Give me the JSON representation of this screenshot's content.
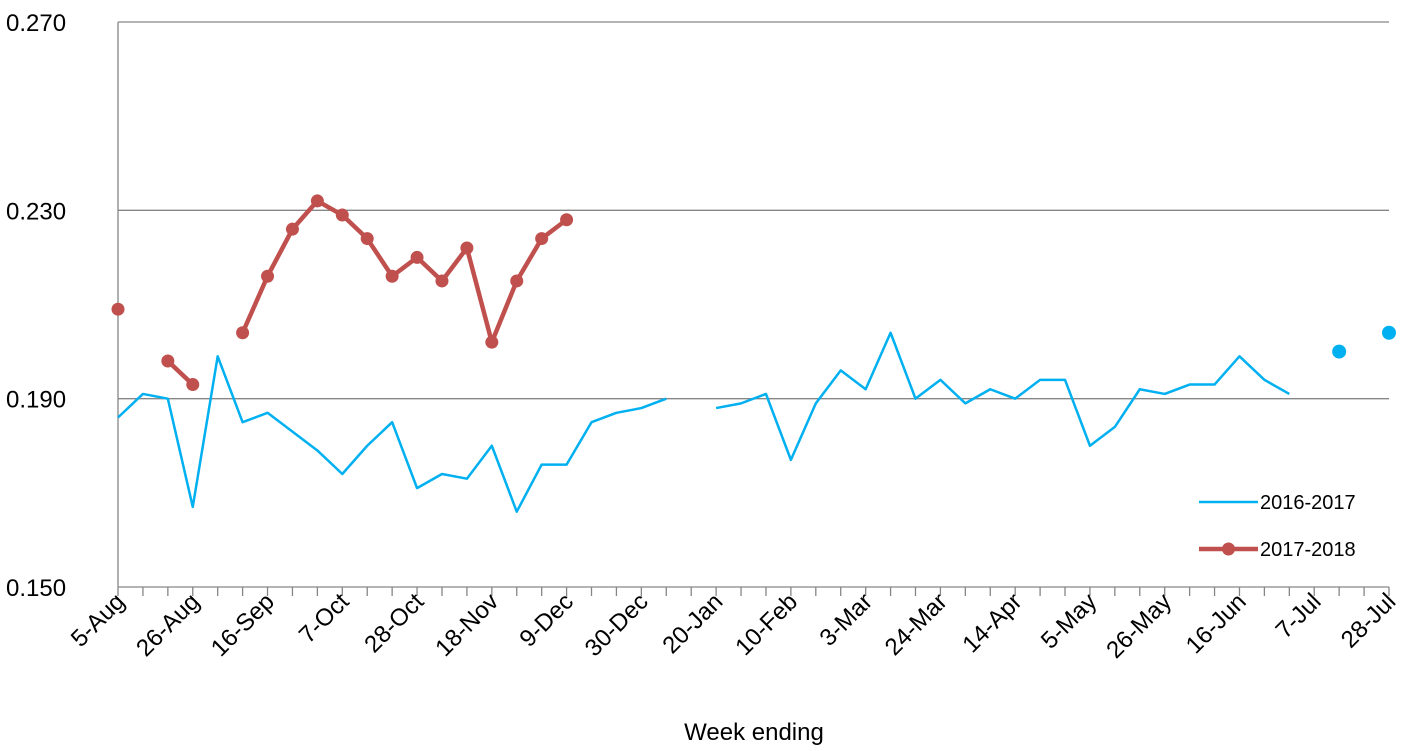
{
  "chart_data": {
    "type": "line",
    "title": "",
    "xlabel": "Week ending",
    "ylabel": "",
    "ylim": [
      0.15,
      0.27
    ],
    "yticks": [
      "0.150",
      "0.190",
      "0.230",
      "0.270"
    ],
    "grid": true,
    "legend_position": "bottom-right",
    "x_tick_labels": [
      "5-Aug",
      "26-Aug",
      "16-Sep",
      "7-Oct",
      "28-Oct",
      "18-Nov",
      "9-Dec",
      "30-Dec",
      "20-Jan",
      "10-Feb",
      "3-Mar",
      "24-Mar",
      "14-Apr",
      "5-May",
      "26-May",
      "16-Jun",
      "7-Jul",
      "28-Jul"
    ],
    "x_week_count": 52,
    "series": [
      {
        "name": "2016-2017",
        "color": "#00b0f0",
        "markers": false,
        "values": [
          0.186,
          0.191,
          0.19,
          0.167,
          0.199,
          0.185,
          0.187,
          0.183,
          0.179,
          0.174,
          0.18,
          0.185,
          0.171,
          0.174,
          0.173,
          0.18,
          0.166,
          0.176,
          0.176,
          0.185,
          0.187,
          0.188,
          0.19,
          null,
          0.188,
          0.189,
          0.191,
          0.177,
          0.189,
          0.196,
          0.192,
          0.204,
          0.19,
          0.194,
          0.189,
          0.192,
          0.19,
          0.194,
          0.194,
          0.18,
          0.184,
          0.192,
          0.191,
          0.193,
          0.193,
          0.199,
          0.194,
          0.191,
          null,
          0.2,
          null,
          0.204
        ]
      },
      {
        "name": "2017-2018",
        "color": "#c0504d",
        "markers": true,
        "values": [
          0.209,
          null,
          0.198,
          0.193,
          null,
          0.204,
          0.216,
          0.226,
          0.232,
          0.229,
          0.224,
          0.216,
          0.22,
          0.215,
          0.222,
          0.202,
          0.215,
          0.224,
          0.228
        ]
      }
    ]
  }
}
